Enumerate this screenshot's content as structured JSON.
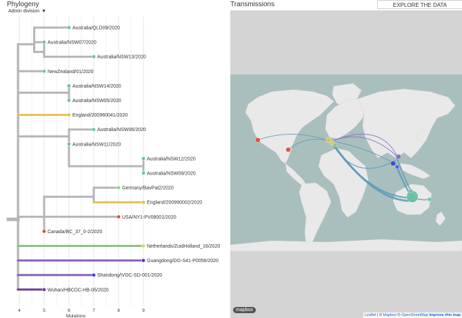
{
  "header": {
    "phylogeny_title": "Phylogeny",
    "transmissions_title": "Transmissions",
    "explore_label": "EXPLORE THE DATA YOURSELF"
  },
  "controls": {
    "admin_division_label": "Admin division"
  },
  "tree": {
    "x_axis_label": "Mutations",
    "ticks": [
      4,
      5,
      6,
      7,
      8,
      9
    ],
    "tips": [
      {
        "name": "Australia/QLD09/2020",
        "mutations": 6,
        "color": "#66c2a5"
      },
      {
        "name": "Australia/NSW07/2020",
        "mutations": 5,
        "color": "#66c2a5"
      },
      {
        "name": "Australia/NSW13/2020",
        "mutations": 7,
        "color": "#66c2a5"
      },
      {
        "name": "NewZealand/01/2020",
        "mutations": 5,
        "color": "#66c2a5"
      },
      {
        "name": "Australia/NSW14/2020",
        "mutations": 6,
        "color": "#66c2a5"
      },
      {
        "name": "Australia/NSW05/2020",
        "mutations": 6,
        "color": "#66c2a5"
      },
      {
        "name": "England/200960041/2020",
        "mutations": 6,
        "color": "#e6c14a"
      },
      {
        "name": "Australia/NSW06/2020",
        "mutations": 7,
        "color": "#66c2a5"
      },
      {
        "name": "Australia/NSW11/2020",
        "mutations": 6,
        "color": "#66c2a5"
      },
      {
        "name": "Australia/NSW12/2020",
        "mutations": 9,
        "color": "#66c2a5"
      },
      {
        "name": "Australia/NSW09/2020",
        "mutations": 9,
        "color": "#66c2a5"
      },
      {
        "name": "Germany/BavPat2/2020",
        "mutations": 8,
        "color": "#8fd18a"
      },
      {
        "name": "England/200990002/2020",
        "mutations": 9,
        "color": "#e6c14a"
      },
      {
        "name": "USA/NY1-PV08001/2020",
        "mutations": 8,
        "color": "#e34a33"
      },
      {
        "name": "Canada/BC_37_0-2/2020",
        "mutations": 5,
        "color": "#e34a33"
      },
      {
        "name": "Netherlands/ZuidHolland_16/2020",
        "mutations": 9,
        "color": "#d6d65a"
      },
      {
        "name": "Guangdong/DG-S41-P0056/2020",
        "mutations": 9,
        "color": "#3b3bd1"
      },
      {
        "name": "Shandong/IVDC-SD-001/2020",
        "mutations": 7,
        "color": "#3b3bd1"
      },
      {
        "name": "Wuhan/HBCDC-HB-05/2020",
        "mutations": 5,
        "color": "#6a3d9a"
      }
    ]
  },
  "map": {
    "mapbox_label": "mapbox",
    "attribution": {
      "leaflet": "Leaflet",
      "sep1": " | © ",
      "mapbox": "Mapbox",
      "sep2": " © ",
      "osm": "OpenStreetMap",
      "improve": "Improve this map"
    },
    "colors": {
      "land": "#e9e9e9",
      "water": "#a9bfbe",
      "frame": "#d4d4d4",
      "arc": "#5b9bb5"
    }
  }
}
